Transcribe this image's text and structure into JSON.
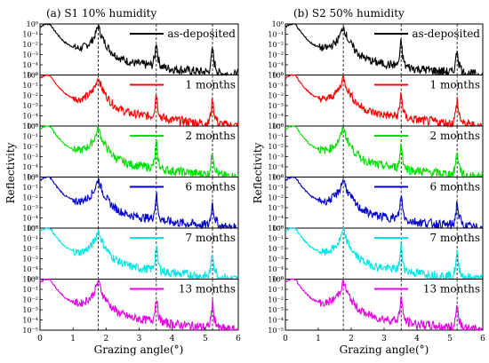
{
  "chart_data": {
    "type": "line",
    "y_scale": "log",
    "shared_x": {
      "label": "Grazing angle(°)",
      "range": [
        0,
        6
      ],
      "ticks": [
        "0",
        "1",
        "2",
        "3",
        "4",
        "5",
        "6"
      ]
    },
    "shared_y": {
      "label": "Reflectivity",
      "range": [
        1e-05,
        1
      ],
      "ticks": [
        "10⁰",
        "10⁻¹",
        "10⁻²",
        "10⁻³",
        "10⁻⁴",
        "10⁻⁵"
      ]
    },
    "reference_lines_x": [
      1.76,
      3.52,
      5.22
    ],
    "panels": [
      {
        "title": "(a)  S1  10% humidity",
        "series": [
          {
            "name": "as-deposited",
            "color": "#000000"
          },
          {
            "name": "1 months",
            "color": "#ff0000"
          },
          {
            "name": "2 months",
            "color": "#00e000"
          },
          {
            "name": "6 months",
            "color": "#0000cc"
          },
          {
            "name": "7 months",
            "color": "#00e5e5"
          },
          {
            "name": "13 months",
            "color": "#e600e6"
          }
        ]
      },
      {
        "title": "(b)  S2  50% humidity",
        "series": [
          {
            "name": "as-deposited",
            "color": "#000000"
          },
          {
            "name": "1 months",
            "color": "#ff0000"
          },
          {
            "name": "2 months",
            "color": "#00e000"
          },
          {
            "name": "6 months",
            "color": "#0000cc"
          },
          {
            "name": "7 months",
            "color": "#00e5e5"
          },
          {
            "name": "13 months",
            "color": "#e600e6"
          }
        ]
      }
    ],
    "profile_x": [
      0.0,
      0.05,
      0.1,
      0.2,
      0.28,
      0.34,
      0.4,
      0.5,
      0.6,
      0.75,
      0.9,
      1.05,
      1.2,
      1.35,
      1.5,
      1.6,
      1.68,
      1.72,
      1.76,
      1.8,
      1.85,
      1.92,
      2.0,
      2.1,
      2.25,
      2.4,
      2.6,
      2.8,
      3.0,
      3.2,
      3.4,
      3.47,
      3.52,
      3.57,
      3.65,
      3.8,
      4.0,
      4.3,
      4.6,
      4.9,
      5.1,
      5.17,
      5.22,
      5.27,
      5.4,
      5.6,
      5.8,
      6.0
    ],
    "profile_log10_y": [
      -0.3,
      -0.2,
      -0.1,
      0.0,
      0.0,
      -0.15,
      -0.5,
      -0.9,
      -1.3,
      -1.8,
      -2.1,
      -2.3,
      -2.4,
      -2.2,
      -1.9,
      -1.5,
      -1.0,
      -0.6,
      -0.15,
      -0.6,
      -1.1,
      -1.6,
      -2.0,
      -2.5,
      -3.0,
      -3.3,
      -3.6,
      -3.8,
      -3.9,
      -4.0,
      -4.0,
      -3.3,
      -1.5,
      -3.3,
      -4.1,
      -4.3,
      -4.4,
      -4.5,
      -4.6,
      -4.7,
      -4.7,
      -3.8,
      -2.3,
      -3.8,
      -4.8,
      -4.9,
      -5.0,
      -5.0
    ]
  }
}
